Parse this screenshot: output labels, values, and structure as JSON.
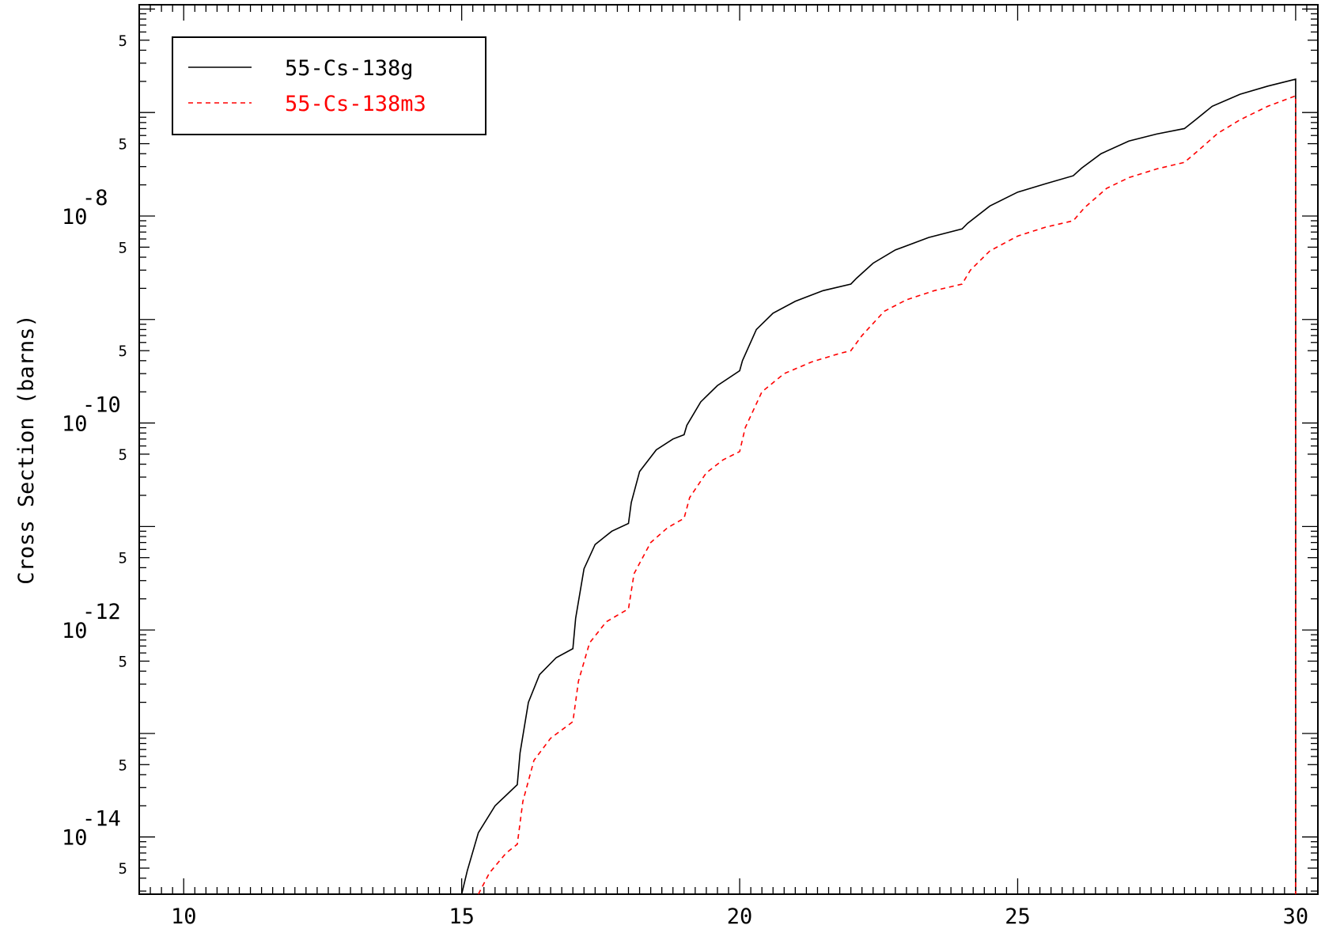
{
  "chart_data": {
    "type": "line",
    "title": "",
    "xlabel": "",
    "ylabel": "Cross Section (barns)",
    "xscale": "linear",
    "yscale": "log",
    "xlim": [
      9.2,
      30.4
    ],
    "ylim": [
      2.8e-15,
      1.1e-06
    ],
    "x_ticks": [
      10,
      15,
      20,
      25,
      30
    ],
    "y_decade_labels": [
      {
        "exp": -8,
        "mantissa": "10",
        "sup": "-8"
      },
      {
        "exp": -10,
        "mantissa": "10",
        "sup": "-10"
      },
      {
        "exp": -12,
        "mantissa": "10",
        "sup": "-12"
      },
      {
        "exp": -14,
        "mantissa": "10",
        "sup": "-14"
      }
    ],
    "y_minor_label": "5",
    "grid": false,
    "legend_position": "top-left",
    "series": [
      {
        "name": "55-Cs-138g",
        "color": "#000000",
        "dash": "solid",
        "points": [
          [
            15.0,
            2.8e-15
          ],
          [
            15.1,
            4.7e-15
          ],
          [
            15.3,
            1.1e-14
          ],
          [
            15.6,
            2e-14
          ],
          [
            16.0,
            3.2e-14
          ],
          [
            16.05,
            6.5e-14
          ],
          [
            16.2,
            2e-13
          ],
          [
            16.4,
            3.7e-13
          ],
          [
            16.7,
            5.4e-13
          ],
          [
            17.0,
            6.6e-13
          ],
          [
            17.05,
            1.3e-12
          ],
          [
            17.2,
            3.9e-12
          ],
          [
            17.4,
            6.7e-12
          ],
          [
            17.7,
            9e-12
          ],
          [
            18.0,
            1.07e-11
          ],
          [
            18.05,
            1.7e-11
          ],
          [
            18.2,
            3.4e-11
          ],
          [
            18.5,
            5.5e-11
          ],
          [
            18.8,
            7e-11
          ],
          [
            19.0,
            7.7e-11
          ],
          [
            19.05,
            9.5e-11
          ],
          [
            19.3,
            1.6e-10
          ],
          [
            19.6,
            2.3e-10
          ],
          [
            20.0,
            3.2e-10
          ],
          [
            20.05,
            4e-10
          ],
          [
            20.3,
            8e-10
          ],
          [
            20.6,
            1.15e-09
          ],
          [
            21.0,
            1.5e-09
          ],
          [
            21.5,
            1.9e-09
          ],
          [
            22.0,
            2.2e-09
          ],
          [
            22.1,
            2.5e-09
          ],
          [
            22.4,
            3.5e-09
          ],
          [
            22.8,
            4.7e-09
          ],
          [
            23.4,
            6.2e-09
          ],
          [
            24.0,
            7.5e-09
          ],
          [
            24.1,
            8.5e-09
          ],
          [
            24.5,
            1.25e-08
          ],
          [
            25.0,
            1.7e-08
          ],
          [
            25.5,
            2.05e-08
          ],
          [
            26.0,
            2.45e-08
          ],
          [
            26.15,
            2.9e-08
          ],
          [
            26.5,
            4e-08
          ],
          [
            27.0,
            5.3e-08
          ],
          [
            27.5,
            6.2e-08
          ],
          [
            28.0,
            7e-08
          ],
          [
            28.2,
            8.5e-08
          ],
          [
            28.5,
            1.15e-07
          ],
          [
            29.0,
            1.5e-07
          ],
          [
            29.5,
            1.8e-07
          ],
          [
            30.0,
            2.1e-07
          ],
          [
            30.0,
            2.8e-15
          ]
        ]
      },
      {
        "name": "55-Cs-138m3",
        "color": "#ff0000",
        "dash": "dashed",
        "points": [
          [
            15.3,
            2.8e-15
          ],
          [
            15.5,
            4.5e-15
          ],
          [
            15.8,
            7e-15
          ],
          [
            16.0,
            8.5e-15
          ],
          [
            16.1,
            2.2e-14
          ],
          [
            16.3,
            5.5e-14
          ],
          [
            16.6,
            9e-14
          ],
          [
            17.0,
            1.3e-13
          ],
          [
            17.1,
            3.2e-13
          ],
          [
            17.3,
            7.5e-13
          ],
          [
            17.6,
            1.2e-12
          ],
          [
            18.0,
            1.6e-12
          ],
          [
            18.1,
            3.5e-12
          ],
          [
            18.4,
            7e-12
          ],
          [
            18.7,
            9.7e-12
          ],
          [
            19.0,
            1.2e-11
          ],
          [
            19.1,
            1.9e-11
          ],
          [
            19.4,
            3.3e-11
          ],
          [
            19.7,
            4.4e-11
          ],
          [
            20.0,
            5.3e-11
          ],
          [
            20.1,
            9e-11
          ],
          [
            20.4,
            2e-10
          ],
          [
            20.8,
            3e-10
          ],
          [
            21.3,
            3.9e-10
          ],
          [
            21.8,
            4.7e-10
          ],
          [
            22.0,
            5e-10
          ],
          [
            22.2,
            7e-10
          ],
          [
            22.6,
            1.2e-09
          ],
          [
            23.0,
            1.55e-09
          ],
          [
            23.5,
            1.9e-09
          ],
          [
            24.0,
            2.2e-09
          ],
          [
            24.15,
            3e-09
          ],
          [
            24.5,
            4.6e-09
          ],
          [
            25.0,
            6.4e-09
          ],
          [
            25.5,
            7.8e-09
          ],
          [
            26.0,
            9e-09
          ],
          [
            26.2,
            1.2e-08
          ],
          [
            26.6,
            1.85e-08
          ],
          [
            27.0,
            2.35e-08
          ],
          [
            27.5,
            2.85e-08
          ],
          [
            28.0,
            3.3e-08
          ],
          [
            28.25,
            4.3e-08
          ],
          [
            28.6,
            6.3e-08
          ],
          [
            29.0,
            8.5e-08
          ],
          [
            29.5,
            1.15e-07
          ],
          [
            30.0,
            1.45e-07
          ],
          [
            30.0,
            2.8e-15
          ]
        ]
      }
    ]
  }
}
